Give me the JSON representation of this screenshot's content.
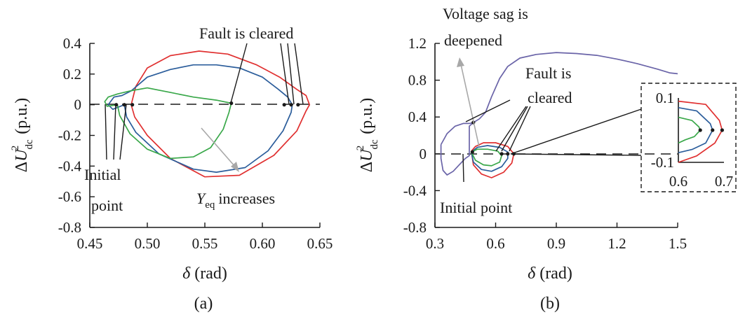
{
  "colors": {
    "red": "#e03030",
    "blue": "#2b5d9b",
    "green": "#3aa84a",
    "purple": "#6a64a8",
    "gray": "#a8a8a8",
    "ink": "#1a1a1a"
  },
  "chart_data": [
    {
      "type": "line",
      "caption": "(a)",
      "xlabel": "δ (rad)",
      "ylabel": "ΔU²dc (p.u.)",
      "xlim": [
        0.45,
        0.65
      ],
      "ylim": [
        -0.8,
        0.4
      ],
      "xticks": [
        "0.45",
        "0.50",
        "0.55",
        "0.60",
        "0.65"
      ],
      "yticks": [
        "0.4",
        "0.2",
        "0",
        "-0.2",
        "-0.4",
        "-0.6",
        "-0.8"
      ],
      "annotations": {
        "fault": "Fault is cleared",
        "initial_1": "Initial",
        "initial_2": "point",
        "yeq_symbol": "Y",
        "yeq_sub": "eq",
        "yeq_text": "increases"
      },
      "series": [
        {
          "color": "red",
          "points": [
            [
              0.486,
              0
            ],
            [
              0.489,
              -0.08
            ],
            [
              0.5,
              -0.2
            ],
            [
              0.52,
              -0.35
            ],
            [
              0.55,
              -0.47
            ],
            [
              0.58,
              -0.46
            ],
            [
              0.61,
              -0.33
            ],
            [
              0.63,
              -0.17
            ],
            [
              0.638,
              -0.04
            ],
            [
              0.641,
              0.0
            ],
            [
              0.638,
              0.06
            ],
            [
              0.63,
              0.1
            ],
            [
              0.615,
              0.18
            ],
            [
              0.595,
              0.26
            ],
            [
              0.57,
              0.33
            ],
            [
              0.545,
              0.35
            ],
            [
              0.52,
              0.32
            ],
            [
              0.5,
              0.24
            ],
            [
              0.49,
              0.12
            ],
            [
              0.486,
              0
            ]
          ]
        },
        {
          "color": "blue",
          "points": [
            [
              0.48,
              0
            ],
            [
              0.482,
              -0.08
            ],
            [
              0.49,
              -0.18
            ],
            [
              0.51,
              -0.32
            ],
            [
              0.54,
              -0.42
            ],
            [
              0.56,
              -0.44
            ],
            [
              0.585,
              -0.41
            ],
            [
              0.605,
              -0.3
            ],
            [
              0.618,
              -0.17
            ],
            [
              0.625,
              -0.05
            ],
            [
              0.626,
              0
            ],
            [
              0.622,
              0.05
            ],
            [
              0.614,
              0.1
            ],
            [
              0.6,
              0.18
            ],
            [
              0.58,
              0.24
            ],
            [
              0.56,
              0.26
            ],
            [
              0.54,
              0.26
            ],
            [
              0.52,
              0.23
            ],
            [
              0.5,
              0.18
            ],
            [
              0.486,
              0.09
            ],
            [
              0.478,
              0.06
            ],
            [
              0.471,
              0.05
            ],
            [
              0.466,
              0.0
            ],
            [
              0.47,
              -0.03
            ],
            [
              0.48,
              0
            ]
          ]
        },
        {
          "color": "green",
          "points": [
            [
              0.474,
              0
            ],
            [
              0.476,
              -0.07
            ],
            [
              0.485,
              -0.19
            ],
            [
              0.5,
              -0.29
            ],
            [
              0.52,
              -0.35
            ],
            [
              0.54,
              -0.34
            ],
            [
              0.555,
              -0.28
            ],
            [
              0.566,
              -0.16
            ],
            [
              0.571,
              -0.05
            ],
            [
              0.573,
              0.01
            ],
            [
              0.56,
              0.03
            ],
            [
              0.54,
              0.05
            ],
            [
              0.52,
              0.08
            ],
            [
              0.5,
              0.11
            ],
            [
              0.485,
              0.09
            ],
            [
              0.474,
              0.07
            ],
            [
              0.466,
              0.05
            ],
            [
              0.463,
              0.02
            ],
            [
              0.465,
              -0.01
            ],
            [
              0.474,
              0
            ]
          ]
        }
      ],
      "markers": [
        [
          0.473,
          0
        ],
        [
          0.48,
          0
        ],
        [
          0.487,
          0
        ],
        [
          0.573,
          0.01
        ],
        [
          0.619,
          0
        ],
        [
          0.625,
          0
        ],
        [
          0.631,
          0
        ]
      ]
    },
    {
      "type": "line",
      "caption": "(b)",
      "xlabel": "δ (rad)",
      "ylabel": "ΔU²dc (p.u.)",
      "xlim": [
        0.3,
        1.5
      ],
      "ylim": [
        -0.8,
        1.2
      ],
      "xticks": [
        "0.3",
        "0.6",
        "0.9",
        "1.2",
        "1.5"
      ],
      "yticks": [
        "1.2",
        "0.8",
        "0.4",
        "0",
        "-0.4",
        "-0.8"
      ],
      "annotations": {
        "sag_1": "Voltage sag is",
        "sag_2": "deepened",
        "fault_1": "Fault is",
        "fault_2": "cleared",
        "initial": "Initial point"
      },
      "series": [
        {
          "color": "purple",
          "points": [
            [
              0.33,
              0.1
            ],
            [
              0.33,
              -0.05
            ],
            [
              0.34,
              -0.18
            ],
            [
              0.36,
              -0.23
            ],
            [
              0.39,
              -0.19
            ],
            [
              0.42,
              -0.12
            ],
            [
              0.45,
              -0.05
            ],
            [
              0.47,
              -0.02
            ],
            [
              0.47,
              0.15
            ],
            [
              0.47,
              0.3
            ],
            [
              0.49,
              0.34
            ],
            [
              0.52,
              0.38
            ],
            [
              0.55,
              0.45
            ],
            [
              0.58,
              0.62
            ],
            [
              0.62,
              0.82
            ],
            [
              0.66,
              0.95
            ],
            [
              0.72,
              1.04
            ],
            [
              0.8,
              1.08
            ],
            [
              0.9,
              1.1
            ],
            [
              1.0,
              1.09
            ],
            [
              1.1,
              1.07
            ],
            [
              1.2,
              1.03
            ],
            [
              1.3,
              0.98
            ],
            [
              1.4,
              0.92
            ],
            [
              1.46,
              0.88
            ],
            [
              1.5,
              0.87
            ]
          ]
        },
        {
          "color": "purple",
          "points": [
            [
              0.33,
              0.1
            ],
            [
              0.36,
              0.22
            ],
            [
              0.4,
              0.3
            ],
            [
              0.44,
              0.33
            ],
            [
              0.47,
              0.33
            ],
            [
              0.49,
              0.34
            ]
          ]
        },
        {
          "color": "red",
          "points": [
            [
              0.48,
              0.03
            ],
            [
              0.49,
              -0.12
            ],
            [
              0.53,
              -0.22
            ],
            [
              0.58,
              -0.26
            ],
            [
              0.64,
              -0.2
            ],
            [
              0.68,
              -0.1
            ],
            [
              0.69,
              0.0
            ],
            [
              0.66,
              0.08
            ],
            [
              0.6,
              0.12
            ],
            [
              0.54,
              0.12
            ],
            [
              0.5,
              0.08
            ],
            [
              0.48,
              0.03
            ]
          ]
        },
        {
          "color": "blue",
          "points": [
            [
              0.48,
              0.02
            ],
            [
              0.49,
              -0.09
            ],
            [
              0.53,
              -0.17
            ],
            [
              0.58,
              -0.19
            ],
            [
              0.63,
              -0.14
            ],
            [
              0.66,
              -0.05
            ],
            [
              0.66,
              0.02
            ],
            [
              0.62,
              0.07
            ],
            [
              0.56,
              0.09
            ],
            [
              0.51,
              0.07
            ],
            [
              0.48,
              0.02
            ]
          ]
        },
        {
          "color": "green",
          "points": [
            [
              0.48,
              0.02
            ],
            [
              0.5,
              -0.07
            ],
            [
              0.54,
              -0.12
            ],
            [
              0.58,
              -0.13
            ],
            [
              0.62,
              -0.09
            ],
            [
              0.63,
              -0.02
            ],
            [
              0.61,
              0.03
            ],
            [
              0.56,
              0.05
            ],
            [
              0.51,
              0.05
            ],
            [
              0.48,
              0.02
            ]
          ]
        }
      ],
      "markers": [
        [
          0.49,
          0.34
        ],
        [
          0.485,
          0.02
        ],
        [
          0.63,
          0.0
        ],
        [
          0.66,
          0.0
        ],
        [
          0.69,
          0.0
        ]
      ],
      "inset": {
        "xlim": [
          0.6,
          0.7
        ],
        "ylim": [
          -0.1,
          0.1
        ],
        "xticks": [
          "0.6",
          "0.7"
        ],
        "yticks": [
          "0.1",
          "-0.1"
        ]
      }
    }
  ]
}
